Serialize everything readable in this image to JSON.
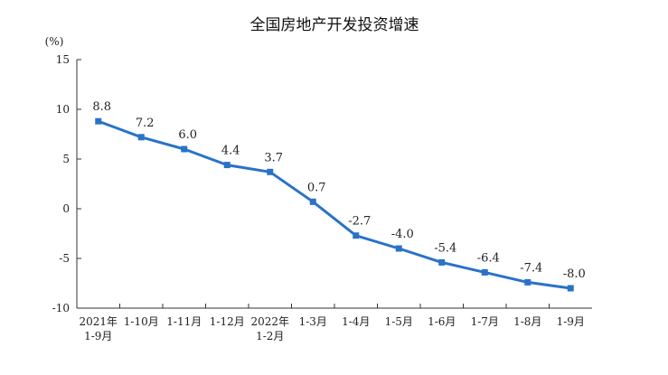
{
  "chart_data": {
    "type": "line",
    "title": "全国房地产开发投资增速",
    "y_unit": "(%)",
    "ylim": [
      -10,
      15
    ],
    "yticks": [
      15,
      10,
      5,
      0,
      -5,
      -10
    ],
    "grid": false,
    "legend": "none",
    "categories": [
      [
        "2021年",
        "1-9月"
      ],
      [
        "1-10月"
      ],
      [
        "1-11月"
      ],
      [
        "1-12月"
      ],
      [
        "2022年",
        "1-2月"
      ],
      [
        "1-3月"
      ],
      [
        "1-4月"
      ],
      [
        "1-5月"
      ],
      [
        "1-6月"
      ],
      [
        "1-7月"
      ],
      [
        "1-8月"
      ],
      [
        "1-9月"
      ]
    ],
    "series": [
      {
        "values": [
          8.8,
          7.2,
          6.0,
          4.4,
          3.7,
          0.7,
          -2.7,
          -4.0,
          -5.4,
          -6.4,
          -7.4,
          -8.0
        ],
        "labels": [
          "8.8",
          "7.2",
          "6.0",
          "4.4",
          "3.7",
          "0.7",
          "-2.7",
          "-4.0",
          "-5.4",
          "-6.4",
          "-7.4",
          "-8.0"
        ],
        "color": "#2a72c8"
      }
    ]
  }
}
